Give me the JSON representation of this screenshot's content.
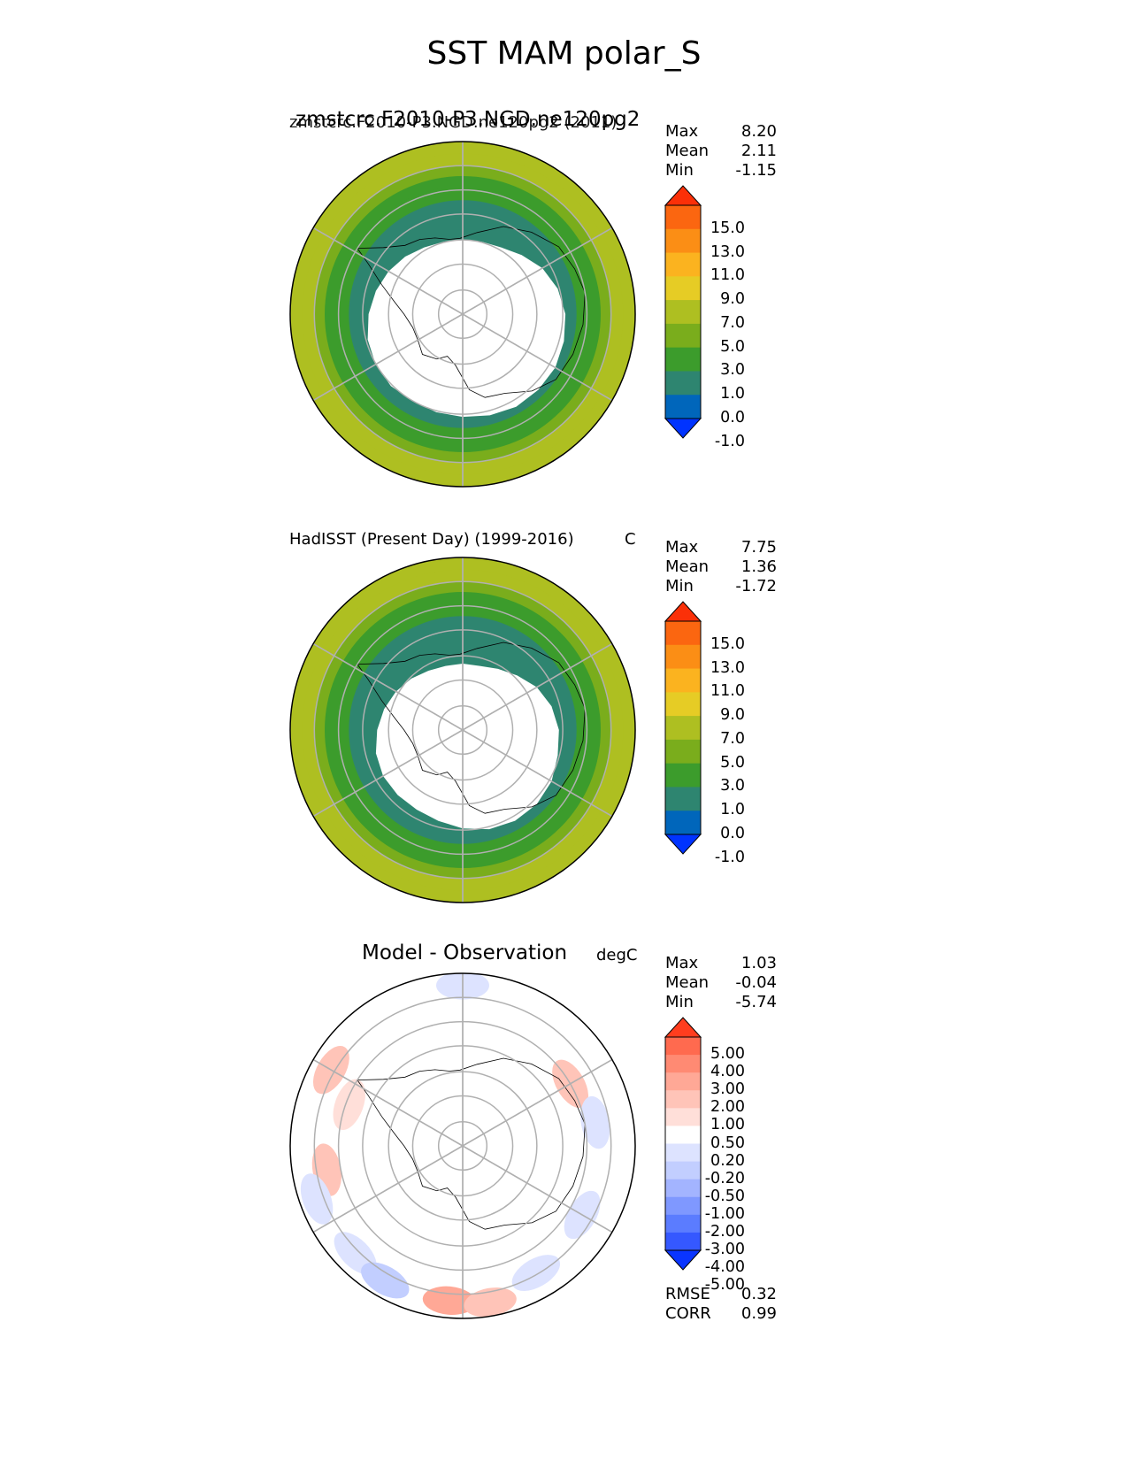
{
  "figure_title": "SST MAM polar_S",
  "colors": {
    "land": "#ffffff",
    "coast": "#000000",
    "grid": "#b0b0b0",
    "fill_cmap": [
      "#0033ff",
      "#0066bb",
      "#2e8570",
      "#3c9c2c",
      "#7aad1c",
      "#aebf21",
      "#e6cc25",
      "#fbb31f",
      "#fb8e15",
      "#fb6610",
      "#fb3008"
    ],
    "diff_cmap": [
      "#0a35ff",
      "#3558ff",
      "#5b7cff",
      "#7f98ff",
      "#a3b4ff",
      "#c2ceff",
      "#dde3ff",
      "#ffffff",
      "#ffdfd9",
      "#ffc4b8",
      "#ffa896",
      "#ff8a73",
      "#ff6a4f",
      "#ff3d1e"
    ]
  },
  "chart_data": [
    {
      "type": "polar_contour_map",
      "projection": "south_polar_stereographic",
      "title": "zmstcrc.F2010-P3.NGD.ne120pg2 (2011)",
      "title_overlap": "zmstcrc.F2010-P3.NGD.ne120pg2",
      "units": "",
      "stats": {
        "max_label": "Max",
        "max": "8.20",
        "mean_label": "Mean",
        "mean": "2.11",
        "min_label": "Min",
        "min": "-1.15"
      },
      "colorbar_ticks": [
        "15.0",
        "13.0",
        "11.0",
        "9.0",
        "7.0",
        "5.0",
        "3.0",
        "1.0",
        "0.0",
        "-1.0"
      ],
      "ring_values": [
        0.6,
        1.4,
        2.7,
        4.2,
        5.6,
        6.5
      ],
      "ice_edge": [
        0.7,
        0.7,
        0.72,
        0.78,
        0.86,
        0.92,
        0.96,
        0.98,
        1.0,
        1.0,
        1.0,
        0.98,
        0.96,
        0.95,
        0.94,
        0.95,
        0.94,
        0.92,
        0.88,
        0.84,
        0.8,
        0.76,
        0.72,
        0.7
      ]
    },
    {
      "type": "polar_contour_map",
      "projection": "south_polar_stereographic",
      "title": "HadISST (Present Day) (1999-2016)",
      "units": "C",
      "stats": {
        "max_label": "Max",
        "max": "7.75",
        "mean_label": "Mean",
        "mean": "1.36",
        "min_label": "Min",
        "min": "-1.72"
      },
      "colorbar_ticks": [
        "15.0",
        "13.0",
        "11.0",
        "9.0",
        "7.0",
        "5.0",
        "3.0",
        "1.0",
        "0.0",
        "-1.0"
      ],
      "ring_values": [
        0.3,
        1.2,
        2.4,
        3.9,
        5.3,
        6.3
      ],
      "ice_edge": [
        0.62,
        0.62,
        0.66,
        0.72,
        0.8,
        0.86,
        0.9,
        0.92,
        0.96,
        0.98,
        0.98,
        0.96,
        0.92,
        0.88,
        0.86,
        0.86,
        0.86,
        0.84,
        0.8,
        0.76,
        0.72,
        0.68,
        0.64,
        0.62
      ]
    },
    {
      "type": "polar_contour_map",
      "projection": "south_polar_stereographic",
      "title": "Model - Observation",
      "units": "degC",
      "stats": {
        "max_label": "Max",
        "max": "1.03",
        "mean_label": "Mean",
        "mean": "-0.04",
        "min_label": "Min",
        "min": "-5.74"
      },
      "extra_stats": {
        "rmse_label": "RMSE",
        "rmse": "0.32",
        "corr_label": "CORR",
        "corr": "0.99"
      },
      "colorbar_ticks": [
        "5.00",
        "4.00",
        "3.00",
        "2.00",
        "1.00",
        "0.50",
        "0.20",
        "-0.20",
        "-0.50",
        "-1.00",
        "-2.00",
        "-3.00",
        "-4.00",
        "-5.00"
      ],
      "anomalies": [
        {
          "ang": 90,
          "r": 0.93,
          "v": -0.5
        },
        {
          "ang": 150,
          "r": 0.88,
          "v": 0.5
        },
        {
          "ang": 160,
          "r": 0.7,
          "v": 0.3
        },
        {
          "ang": 190,
          "r": 0.8,
          "v": 0.5
        },
        {
          "ang": 200,
          "r": 0.9,
          "v": -0.5
        },
        {
          "ang": 225,
          "r": 0.88,
          "v": -0.5
        },
        {
          "ang": 240,
          "r": 0.9,
          "v": -1.0
        },
        {
          "ang": 265,
          "r": 0.9,
          "v": 1.0
        },
        {
          "ang": 280,
          "r": 0.92,
          "v": 0.5
        },
        {
          "ang": 300,
          "r": 0.85,
          "v": -0.5
        },
        {
          "ang": 330,
          "r": 0.8,
          "v": -0.5
        },
        {
          "ang": 30,
          "r": 0.72,
          "v": 0.5
        },
        {
          "ang": 10,
          "r": 0.78,
          "v": -0.5
        }
      ]
    }
  ]
}
